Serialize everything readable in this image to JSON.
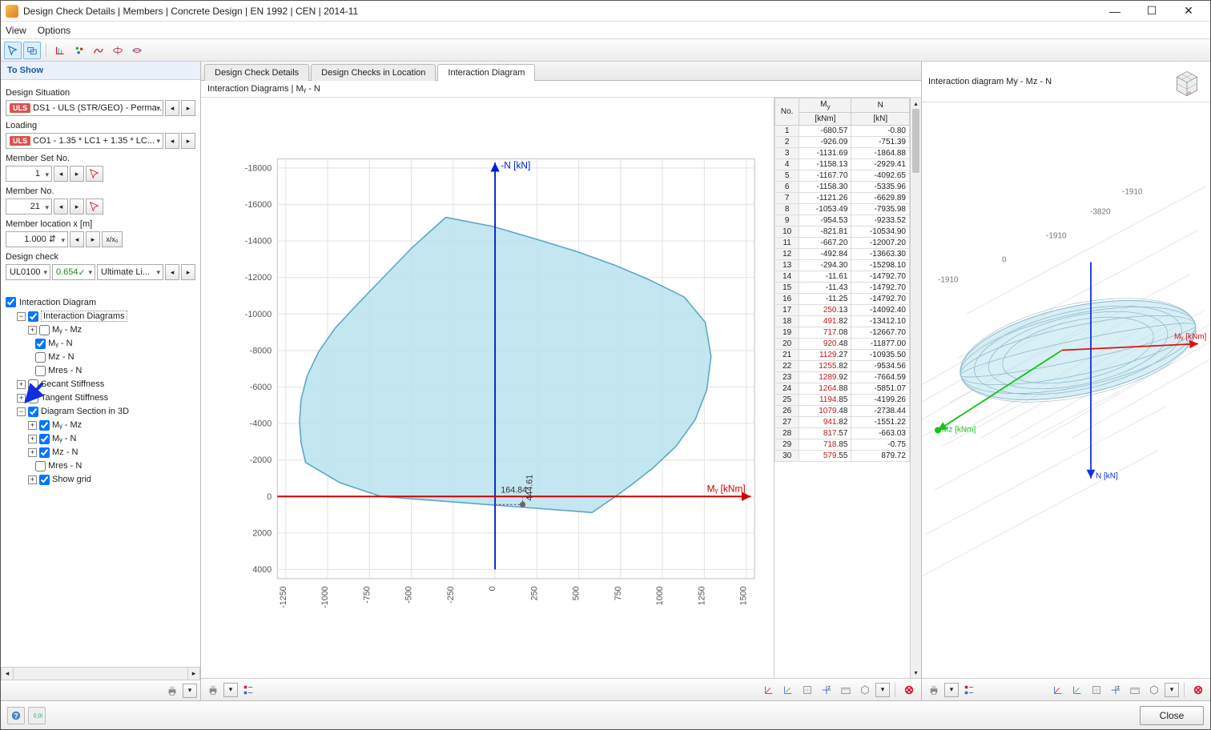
{
  "window": {
    "title": "Design Check Details | Members | Concrete Design | EN 1992 | CEN | 2014-11"
  },
  "menus": [
    "View",
    "Options"
  ],
  "left": {
    "heading": "To Show",
    "design_situation_label": "Design Situation",
    "design_situation_value": "DS1 - ULS (STR/GEO) - Perma...",
    "loading_label": "Loading",
    "loading_value": "CO1 - 1.35 * LC1 + 1.35 * LC...",
    "member_set_label": "Member Set No.",
    "member_set_value": "1",
    "member_no_label": "Member No.",
    "member_no_value": "21",
    "member_loc_label": "Member location x [m]",
    "member_loc_value": "1.000",
    "design_check_label": "Design check",
    "design_check_code": "UL0100",
    "design_check_ratio": "0.654",
    "design_check_type": "Ultimate Li...",
    "interaction_checkbox": "Interaction Diagram",
    "tree": {
      "root": "Interaction Diagrams",
      "items1": [
        "Mᵧ - Mz",
        "Mᵧ - N",
        "Mz - N",
        "Mres - N"
      ],
      "secant": "Secant Stiffness",
      "tangent": "Tangent Stiffness",
      "section3d": "Diagram Section in 3D",
      "items2": [
        "Mᵧ - Mz",
        "Mᵧ - N",
        "Mz - N",
        "Mres - N",
        "Show grid"
      ]
    }
  },
  "center": {
    "tabs": [
      "Design Check Details",
      "Design Checks in Location",
      "Interaction Diagram"
    ],
    "active_tab": 2,
    "heading": "Interaction Diagrams | Mᵧ - N",
    "chart": {
      "y_axis_label": "-N [kN]",
      "x_axis_label": "Mᵧ [kNm]",
      "y_label_color": "#0020d0",
      "x_label_color": "#d00000",
      "x_ticks": [
        -1250,
        -1000,
        -750,
        -500,
        -250,
        0,
        250,
        500,
        750,
        1000,
        1250,
        1500
      ],
      "y_ticks": [
        -18000,
        -16000,
        -14000,
        -12000,
        -10000,
        -8000,
        -6000,
        -4000,
        -2000,
        0,
        2000,
        4000
      ],
      "envelope_fill": "#b8e2ee",
      "envelope_stroke": "#5aa6c4",
      "envelope_points_my_n": [
        [
          -680.57,
          -0.8
        ],
        [
          -926.09,
          -751.39
        ],
        [
          -1131.69,
          -1864.88
        ],
        [
          -1158.13,
          -2929.41
        ],
        [
          -1167.7,
          -4092.65
        ],
        [
          -1158.3,
          -5335.96
        ],
        [
          -1121.26,
          -6629.89
        ],
        [
          -1053.49,
          -7935.98
        ],
        [
          -954.53,
          -9233.52
        ],
        [
          -821.81,
          -10534.9
        ],
        [
          -667.2,
          -12007.2
        ],
        [
          -492.84,
          -13663.3
        ],
        [
          -294.3,
          -15298.1
        ],
        [
          -11.61,
          -14792.7
        ],
        [
          -11.43,
          -14792.7
        ],
        [
          -11.25,
          -14792.7
        ],
        [
          250.13,
          -14092.4
        ],
        [
          491.82,
          -13412.1
        ],
        [
          717.08,
          -12667.7
        ],
        [
          920.48,
          -11877.0
        ],
        [
          1129.27,
          -10935.5
        ],
        [
          1255.82,
          -9534.56
        ],
        [
          1289.92,
          -7664.59
        ],
        [
          1264.88,
          -5851.07
        ],
        [
          1194.85,
          -4199.26
        ],
        [
          1079.48,
          -2738.44
        ],
        [
          941.82,
          -1551.22
        ],
        [
          817.57,
          -663.03
        ],
        [
          718.85,
          -0.75
        ],
        [
          579.55,
          879.72
        ]
      ],
      "marker_x_label": "164.84",
      "marker_y_label": "444.61",
      "grid_color": "#e6e6e6",
      "axis_color": "#888",
      "background": "#ffffff"
    },
    "table": {
      "headers": [
        "No.",
        "Mᵧ\n[kNm]",
        "N\n[kN]"
      ],
      "rows": [
        [
          1,
          -680.57,
          -0.8
        ],
        [
          2,
          -926.09,
          -751.39
        ],
        [
          3,
          -1131.69,
          -1864.88
        ],
        [
          4,
          -1158.13,
          -2929.41
        ],
        [
          5,
          -1167.7,
          -4092.65
        ],
        [
          6,
          -1158.3,
          -5335.96
        ],
        [
          7,
          -1121.26,
          -6629.89
        ],
        [
          8,
          -1053.49,
          -7935.98
        ],
        [
          9,
          -954.53,
          -9233.52
        ],
        [
          10,
          -821.81,
          -10534.9
        ],
        [
          11,
          -667.2,
          -12007.2
        ],
        [
          12,
          -492.84,
          -13663.3
        ],
        [
          13,
          -294.3,
          -15298.1
        ],
        [
          14,
          -11.61,
          -14792.7
        ],
        [
          15,
          -11.43,
          -14792.7
        ],
        [
          16,
          -11.25,
          -14792.7
        ],
        [
          17,
          250.13,
          -14092.4
        ],
        [
          18,
          491.82,
          -13412.1
        ],
        [
          19,
          717.08,
          -12667.7
        ],
        [
          20,
          920.48,
          -11877.0
        ],
        [
          21,
          1129.27,
          -10935.5
        ],
        [
          22,
          1255.82,
          -9534.56
        ],
        [
          23,
          1289.92,
          -7664.59
        ],
        [
          24,
          1264.88,
          -5851.07
        ],
        [
          25,
          1194.85,
          -4199.26
        ],
        [
          26,
          1079.48,
          -2738.44
        ],
        [
          27,
          941.82,
          -1551.22
        ],
        [
          28,
          817.57,
          -663.03
        ],
        [
          29,
          718.85,
          -0.75
        ],
        [
          30,
          579.55,
          879.72
        ]
      ]
    }
  },
  "right": {
    "heading": "Interaction diagram My - Mz - N",
    "axes": {
      "my": "Mᵧ [kNm]",
      "mz": "Mz [kNm]",
      "n": "N [kN]"
    },
    "my_color": "#e01010",
    "mz_color": "#17c21a",
    "n_color": "#1030e0",
    "grid_labels": [
      "-1910",
      "-3820",
      "-1910",
      "0",
      "-1910"
    ]
  },
  "footer": {
    "close": "Close"
  }
}
